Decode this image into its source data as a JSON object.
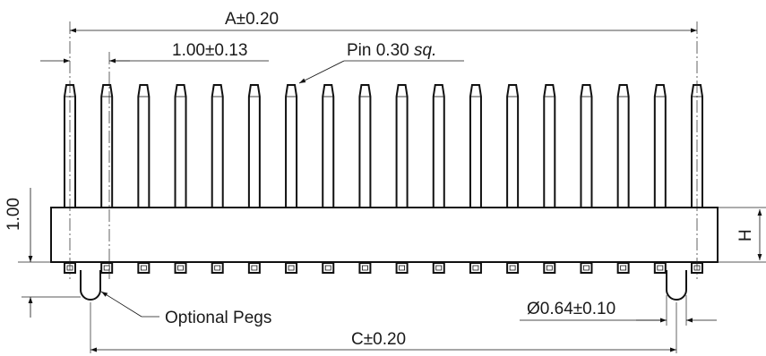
{
  "drawing": {
    "pin_count": 18,
    "peg_count": 2,
    "labels": {
      "dim_a": "A±0.20",
      "dim_pitch": "1.00±0.13",
      "pin_size_prefix": "Pin 0.30 ",
      "pin_size_suffix": "sq.",
      "dim_height_left": "1.00",
      "dim_height_right": "H",
      "pegs_callout": "Optional Pegs",
      "peg_diameter": "Ø0.64±0.10",
      "dim_c": "C±0.20"
    }
  }
}
